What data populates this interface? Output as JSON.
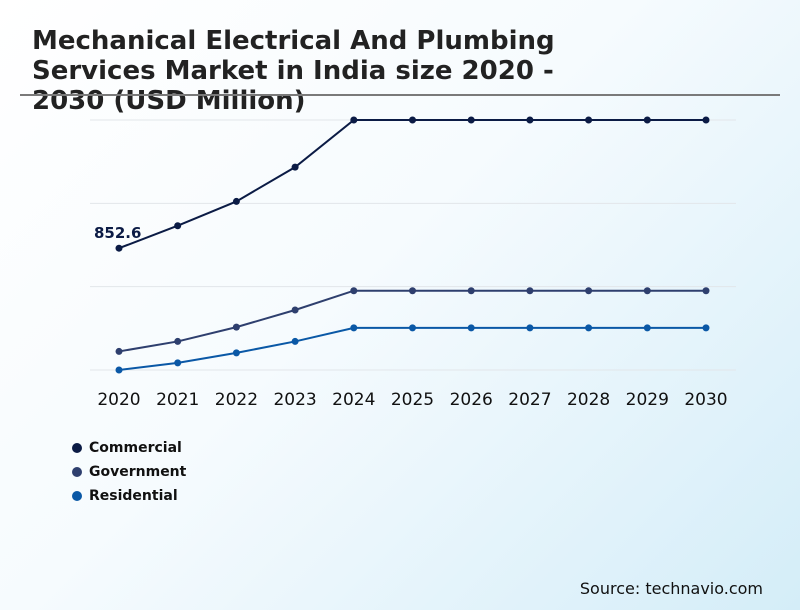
{
  "title": "Mechanical Electrical And Plumbing Services Market in India size 2020 - 2030 (USD Million)",
  "source": "Source: technavio.com",
  "chart_data": {
    "type": "line",
    "title": "Mechanical Electrical And Plumbing Services Market in India size 2020 - 2030 (USD Million)",
    "x": [
      "2020",
      "2021",
      "2022",
      "2023",
      "2024",
      "2025",
      "2026",
      "2027",
      "2028",
      "2029",
      "2030"
    ],
    "ylim": [
      0,
      1750
    ],
    "grid": true,
    "legend_position": "bottom-left",
    "annotations": [
      {
        "series": "Commercial",
        "x": "2020",
        "text": "852.6"
      }
    ],
    "series": [
      {
        "name": "Commercial",
        "color": "#0b1b45",
        "values": [
          852.6,
          1010,
          1180,
          1420,
          1750,
          1750,
          1750,
          1750,
          1750,
          1750,
          1750
        ]
      },
      {
        "name": "Government",
        "color": "#2e3f6e",
        "values": [
          130,
          200,
          300,
          420,
          555,
          555,
          555,
          555,
          555,
          555,
          555
        ]
      },
      {
        "name": "Residential",
        "color": "#0a58a6",
        "values": [
          0,
          50,
          120,
          200,
          295,
          295,
          295,
          295,
          295,
          295,
          295
        ]
      }
    ]
  }
}
